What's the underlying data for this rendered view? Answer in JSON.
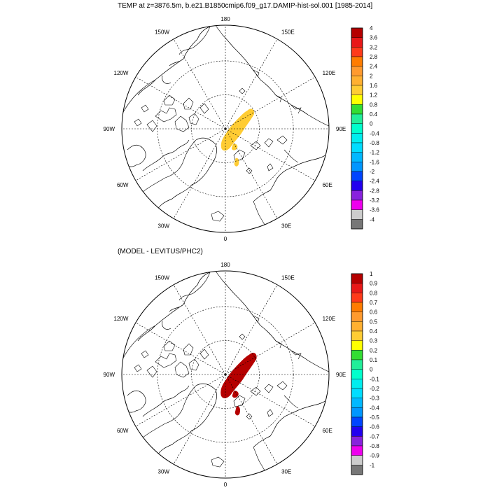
{
  "panels": [
    {
      "title": "TEMP at z=3876.5m, b.e21.B1850cmip6.f09_g17.DAMIP-hist-sol.001 [1985-2014]",
      "longitude_labels": [
        "180",
        "150E",
        "120E",
        "90E",
        "60E",
        "30E",
        "0",
        "30W",
        "60W",
        "90W",
        "120W",
        "150W"
      ],
      "colorbar_labels": [
        "4",
        "3.6",
        "3.2",
        "2.8",
        "2.4",
        "2",
        "1.6",
        "1.2",
        "0.8",
        "0.4",
        "0",
        "-0.4",
        "-0.8",
        "-1.2",
        "-1.6",
        "-2",
        "-2.4",
        "-2.8",
        "-3.2",
        "-3.6",
        "-4"
      ],
      "field_color": "#ffcc33",
      "field_meaning": "1.2 to 1.6"
    },
    {
      "title": "(MODEL - LEVITUS/PHC2)",
      "longitude_labels": [
        "180",
        "150E",
        "120E",
        "90E",
        "60E",
        "30E",
        "0",
        "30W",
        "60W",
        "90W",
        "120W",
        "150W"
      ],
      "colorbar_labels": [
        "1",
        "0.9",
        "0.8",
        "0.7",
        "0.6",
        "0.5",
        "0.4",
        "0.3",
        "0.2",
        "0.1",
        "0",
        "-0.1",
        "-0.2",
        "-0.3",
        "-0.4",
        "-0.5",
        "-0.6",
        "-0.7",
        "-0.8",
        "-0.9",
        "-1"
      ],
      "field_color": "#b50000",
      "field_meaning": "0.9 to 1"
    }
  ],
  "colorbar_colors": [
    "#b50000",
    "#e81818",
    "#ff3a1a",
    "#ff7c00",
    "#ff9a2e",
    "#ffb030",
    "#ffcc33",
    "#ffff00",
    "#33dd33",
    "#22ee99",
    "#00ffcc",
    "#00eeee",
    "#00ddff",
    "#00b8ff",
    "#0096ff",
    "#0044ff",
    "#2200ee",
    "#8822dd",
    "#ee00ee",
    "#cccccc",
    "#777777"
  ]
}
